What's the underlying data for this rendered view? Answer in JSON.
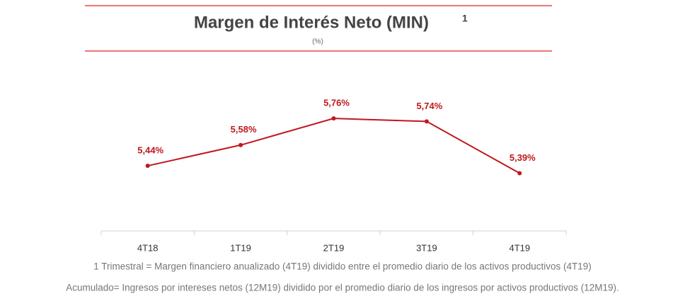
{
  "chart_data": {
    "type": "line",
    "title": "Margen de Interés Neto (MIN)",
    "title_note": "1",
    "subtitle": "(%)",
    "categories": [
      "4T18",
      "1T19",
      "2T19",
      "3T19",
      "4T19"
    ],
    "values": [
      5.44,
      5.58,
      5.76,
      5.74,
      5.39
    ],
    "value_labels": [
      "5,44%",
      "5,58%",
      "5,76%",
      "5,74%",
      "5,39%"
    ],
    "color": "#c0181e",
    "ylim": [
      5.0,
      6.0
    ],
    "footnotes": [
      "1 Trimestral = Margen financiero anualizado (4T19) dividido entre el promedio diario de los activos productivos (4T19)",
      "Acumulado= Ingresos por intereses netos (12M19) dividido por el promedio diario de los ingresos por activos productivos (12M19)."
    ]
  }
}
